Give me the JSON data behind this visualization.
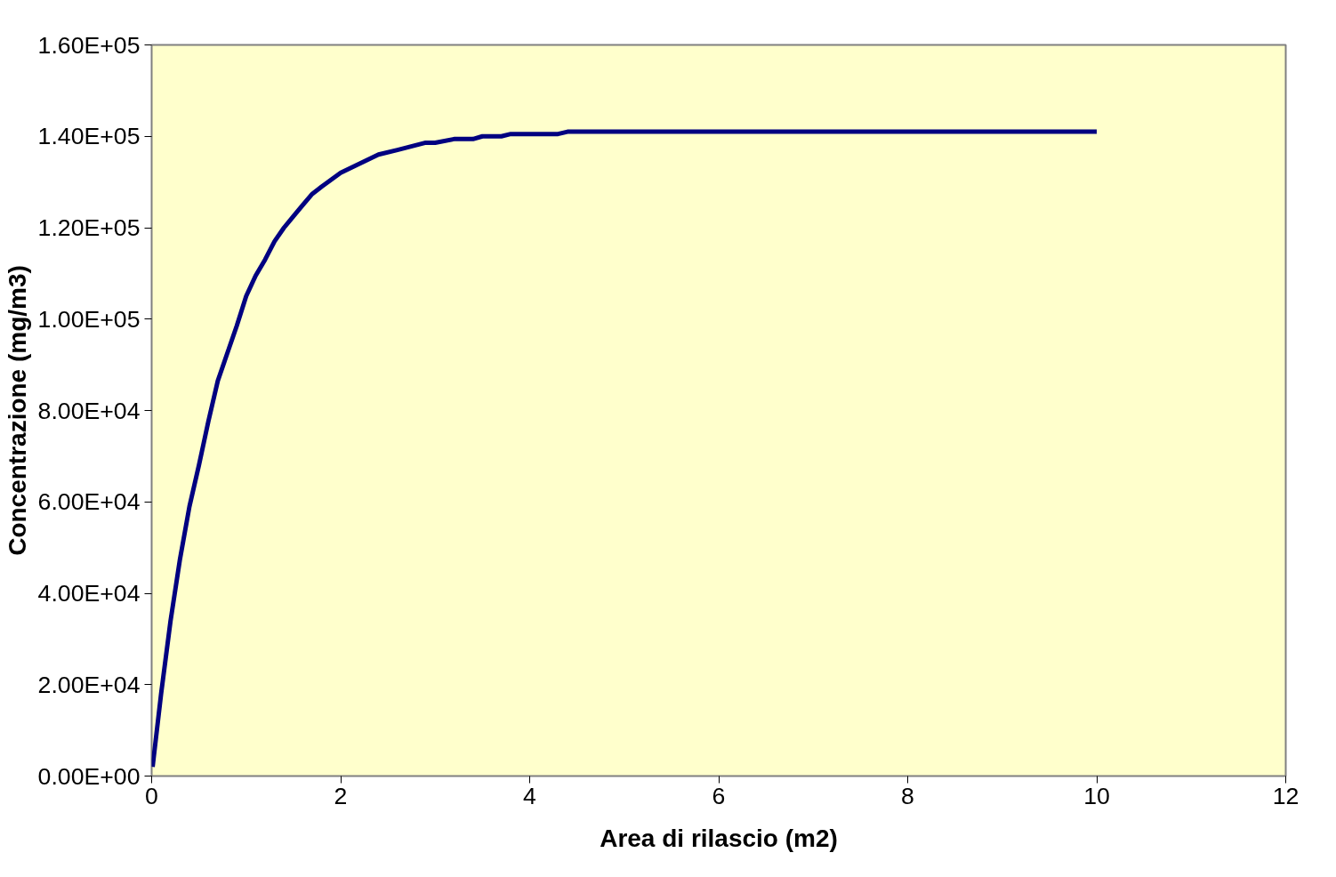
{
  "chart_data": {
    "type": "line",
    "xlabel": "Area di rilascio (m2)",
    "ylabel": "Concentrazione (mg/m3)",
    "x": [
      0.01,
      0.1,
      0.2,
      0.3,
      0.4,
      0.5,
      0.6,
      0.7,
      0.8,
      0.9,
      1.0,
      1.1,
      1.2,
      1.3,
      1.4,
      1.5,
      1.6,
      1.7,
      1.8,
      1.9,
      2.0,
      2.2,
      2.4,
      2.6,
      2.9,
      3.0,
      3.2,
      3.4,
      3.5,
      3.7,
      3.8,
      4.3,
      4.4,
      5,
      6,
      7,
      8,
      9,
      10
    ],
    "series": [
      {
        "color": "#000080",
        "values": [
          2000,
          18000,
          34000,
          47500,
          59000,
          68000,
          77600,
          86500,
          92500,
          98500,
          105000,
          109500,
          113000,
          117000,
          120000,
          122500,
          125000,
          127400,
          129000,
          130500,
          132000,
          134000,
          136000,
          137000,
          138600,
          138600,
          139400,
          139400,
          140000,
          140000,
          140500,
          140500,
          141000,
          141000,
          141000,
          141000,
          141000,
          141000,
          141000
        ]
      }
    ],
    "xlim": [
      0,
      12
    ],
    "xticks": [
      0,
      2,
      4,
      6,
      8,
      10,
      12
    ],
    "ylim": [
      0,
      160000
    ],
    "yticks": [
      {
        "value": 0,
        "label": "0.00E+00"
      },
      {
        "value": 20000,
        "label": "2.00E+04"
      },
      {
        "value": 40000,
        "label": "4.00E+04"
      },
      {
        "value": 60000,
        "label": "6.00E+04"
      },
      {
        "value": 80000,
        "label": "8.00E+04"
      },
      {
        "value": 100000,
        "label": "1.00E+05"
      },
      {
        "value": 120000,
        "label": "1.20E+05"
      },
      {
        "value": 140000,
        "label": "1.40E+05"
      },
      {
        "value": 160000,
        "label": "1.60E+05"
      }
    ],
    "marker": "none",
    "line_style": "solid"
  }
}
